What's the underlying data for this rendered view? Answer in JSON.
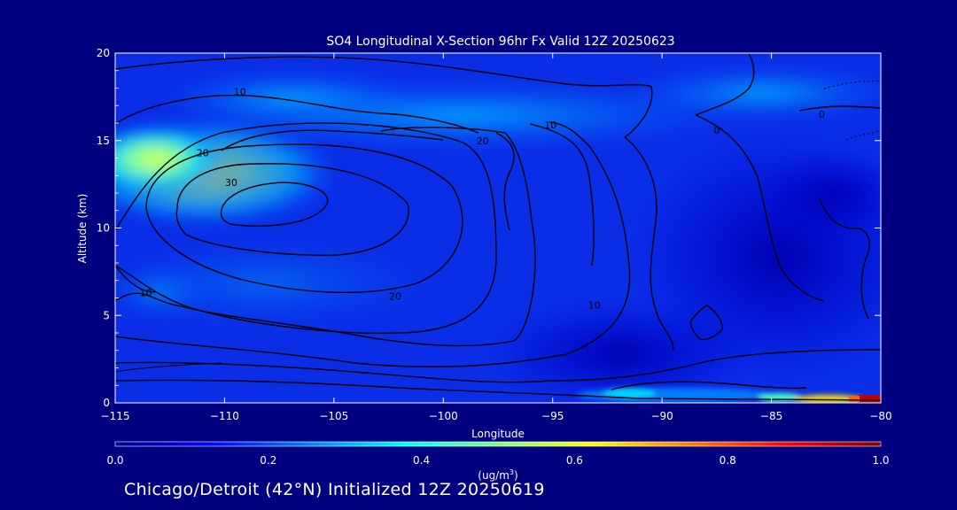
{
  "chart_data": {
    "type": "heatmap",
    "title": "SO4 Longitudinal X-Section 96hr  Fx Valid 12Z 20250623",
    "xlabel": "Longitude",
    "ylabel": "Altitude (km)",
    "xlim": [
      -115,
      -80
    ],
    "ylim": [
      0,
      20
    ],
    "x_ticks": [
      "-115",
      "-110",
      "-105",
      "-100",
      "-95",
      "-90",
      "-85",
      "-80"
    ],
    "y_ticks": [
      "0",
      "5",
      "10",
      "15",
      "20"
    ],
    "colorbar": {
      "min": 0.0,
      "max": 1.0,
      "ticks": [
        "0.0",
        "0.2",
        "0.4",
        "0.6",
        "0.8",
        "1.0"
      ],
      "unit_label": "(ug/m",
      "unit_sup": "3",
      "unit_end": ")",
      "colormap": [
        "#00008f",
        "#0000ff",
        "#0080ff",
        "#00ffff",
        "#80ff80",
        "#ffff00",
        "#ff8000",
        "#ff0000",
        "#800000"
      ]
    },
    "concentration_features": [
      {
        "description": "upper-level SO4 plume",
        "lon": -113.5,
        "alt": 14.0,
        "value": 0.55
      },
      {
        "description": "broad plume band",
        "lon": -104,
        "alt": 16.0,
        "value": 0.3
      },
      {
        "description": "eastern upper band",
        "lon": -85,
        "alt": 16.5,
        "value": 0.25
      },
      {
        "description": "surface maximum",
        "lon": -81.5,
        "alt": 0.2,
        "value": 1.0
      },
      {
        "description": "surface moderate",
        "lon": -86,
        "alt": 0.3,
        "value": 0.45
      },
      {
        "description": "background",
        "value": 0.12
      }
    ],
    "contour_labels": [
      {
        "text": "10",
        "lon": -109.3,
        "alt": 17.8
      },
      {
        "text": "10",
        "lon": -95.1,
        "alt": 15.9
      },
      {
        "text": "20",
        "lon": -111,
        "alt": 14.3
      },
      {
        "text": "20",
        "lon": -98.2,
        "alt": 15.0
      },
      {
        "text": "30",
        "lon": -109.7,
        "alt": 12.6
      },
      {
        "text": "20",
        "lon": -102.2,
        "alt": 6.1
      },
      {
        "text": "10",
        "lon": -113.6,
        "alt": 6.3
      },
      {
        "text": "10",
        "lon": -93.1,
        "alt": 5.6
      },
      {
        "text": "0",
        "lon": -87.5,
        "alt": 15.6
      },
      {
        "text": "0",
        "lon": -82.7,
        "alt": 16.5
      }
    ]
  },
  "footer": "Chicago/Detroit (42°N) Initialized 12Z 20250619"
}
